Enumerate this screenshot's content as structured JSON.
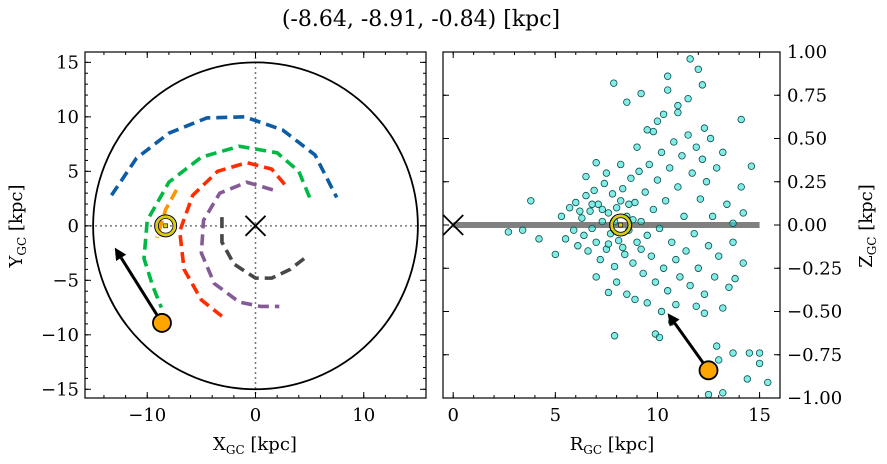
{
  "title": "(-8.64, -8.91, -0.84) [kpc]",
  "colors": {
    "blue": "#0C5DA5",
    "green": "#00B945",
    "red": "#FF2C00",
    "orange": "#FF9500",
    "purple": "#845B97",
    "gray": "#474747",
    "scatter_fill": "#2fe0d6",
    "scatter_edge": "#0b4f4c",
    "marker": "#FFA500",
    "sun": "#d8cc00",
    "plane": "#808080"
  },
  "chart_data": [
    {
      "type": "line",
      "panel": "left",
      "xlabel": {
        "main": "X",
        "sub": "GC",
        "unit": " [kpc]"
      },
      "ylabel": {
        "main": "Y",
        "sub": "GC",
        "unit": " [kpc]"
      },
      "xlim": [
        -15.75,
        15.75
      ],
      "ylim": [
        -15.8,
        15.95
      ],
      "xticks": [
        {
          "v": -10,
          "label": "−10"
        },
        {
          "v": 0,
          "label": "0"
        },
        {
          "v": 10,
          "label": "10"
        }
      ],
      "yticks": [
        {
          "v": -15,
          "label": "−15"
        },
        {
          "v": -10,
          "label": "−10"
        },
        {
          "v": -5,
          "label": "−5"
        },
        {
          "v": 0,
          "label": "0"
        },
        {
          "v": 5,
          "label": "5"
        },
        {
          "v": 10,
          "label": "10"
        },
        {
          "v": 15,
          "label": "15"
        }
      ],
      "boundary_circle_radius": 15,
      "galactic_center": [
        0,
        0
      ],
      "sun": [
        -8.3,
        0
      ],
      "object": [
        -8.64,
        -8.91
      ],
      "arrow": {
        "from": [
          -8.64,
          -8.91
        ],
        "to": [
          -13.0,
          -2.0
        ]
      },
      "series": [
        {
          "color": "blue",
          "points": [
            [
              -13.3,
              2.8
            ],
            [
              -11,
              6.2
            ],
            [
              -8,
              8.5
            ],
            [
              -4.5,
              9.9
            ],
            [
              -1,
              10
            ],
            [
              2.5,
              8.8
            ],
            [
              5.5,
              6.5
            ],
            [
              7.5,
              2.6
            ]
          ]
        },
        {
          "color": "green",
          "points": [
            [
              5,
              2.6
            ],
            [
              4,
              5
            ],
            [
              2,
              6.7
            ],
            [
              -1.5,
              7.3
            ],
            [
              -5,
              6.3
            ],
            [
              -8,
              4
            ],
            [
              -10,
              0.5
            ],
            [
              -10.3,
              -3
            ],
            [
              -9.5,
              -5.5
            ],
            [
              -8.7,
              -7.5
            ]
          ]
        },
        {
          "color": "red",
          "points": [
            [
              2.7,
              3.8
            ],
            [
              1.5,
              5.2
            ],
            [
              -0.8,
              5.8
            ],
            [
              -3.5,
              5
            ],
            [
              -5.8,
              2.8
            ],
            [
              -7,
              -0.5
            ],
            [
              -6.6,
              -4
            ],
            [
              -5,
              -6.8
            ],
            [
              -3.1,
              -8.3
            ]
          ]
        },
        {
          "color": "purple",
          "points": [
            [
              1.6,
              3.3
            ],
            [
              -0.8,
              4
            ],
            [
              -3.3,
              3
            ],
            [
              -4.8,
              0.5
            ],
            [
              -5,
              -2.5
            ],
            [
              -3.8,
              -5.3
            ],
            [
              -1.5,
              -7
            ],
            [
              0.5,
              -7.4
            ],
            [
              2.2,
              -7.4
            ]
          ]
        },
        {
          "color": "gray",
          "points": [
            [
              -3.1,
              0.8
            ],
            [
              -3.1,
              -1.5
            ],
            [
              -2,
              -3.5
            ],
            [
              0,
              -4.8
            ],
            [
              1.5,
              -4.8
            ],
            [
              3.2,
              -4
            ],
            [
              4.5,
              -3
            ]
          ]
        },
        {
          "color": "orange",
          "points": [
            [
              -7.3,
              3.3
            ],
            [
              -8.3,
              1.5
            ],
            [
              -9.1,
              -1.1
            ]
          ]
        }
      ]
    },
    {
      "type": "scatter",
      "panel": "right",
      "xlabel": {
        "main": "R",
        "sub": "GC",
        "unit": " [kpc]"
      },
      "ylabel": {
        "main": "Z",
        "sub": "GC",
        "unit": " [kpc]"
      },
      "xlim": [
        -0.5,
        16
      ],
      "ylim": [
        -1,
        1
      ],
      "xticks": [
        {
          "v": 0,
          "label": "0"
        },
        {
          "v": 5,
          "label": "5"
        },
        {
          "v": 10,
          "label": "10"
        },
        {
          "v": 15,
          "label": "15"
        }
      ],
      "yticks": [
        {
          "v": 1,
          "label": "1.00"
        },
        {
          "v": 0.75,
          "label": "0.75"
        },
        {
          "v": 0.5,
          "label": "0.50"
        },
        {
          "v": 0.25,
          "label": "0.25"
        },
        {
          "v": 0,
          "label": "0.00"
        },
        {
          "v": -0.25,
          "label": "−0.25"
        },
        {
          "v": -0.5,
          "label": "−0.50"
        },
        {
          "v": -0.75,
          "label": "−0.75"
        },
        {
          "v": -1,
          "label": "−1.00"
        }
      ],
      "galactic_center": [
        0,
        0
      ],
      "plane": {
        "z": 0,
        "r_range": [
          0,
          15
        ]
      },
      "sun": [
        8.2,
        0
      ],
      "object": [
        12.5,
        -0.84
      ],
      "arrow": {
        "from": [
          12.5,
          -0.84
        ],
        "to": [
          10.5,
          -0.51
        ]
      },
      "points": [
        [
          11.6,
          0.96
        ],
        [
          12.0,
          0.9
        ],
        [
          7.86,
          0.82
        ],
        [
          10.5,
          0.86
        ],
        [
          10.5,
          0.78
        ],
        [
          12.2,
          0.81
        ],
        [
          9.2,
          0.76
        ],
        [
          8.5,
          0.71
        ],
        [
          11.5,
          0.73
        ],
        [
          11.0,
          0.69
        ],
        [
          10.3,
          0.64
        ],
        [
          14.1,
          0.61
        ],
        [
          12.3,
          0.56
        ],
        [
          9.8,
          0.54
        ],
        [
          14.6,
          0.34
        ],
        [
          14.1,
          0.22
        ],
        [
          7.0,
          0.36
        ],
        [
          3.8,
          0.14
        ],
        [
          2.7,
          -0.04
        ],
        [
          3.4,
          -0.03
        ],
        [
          4.2,
          -0.08
        ],
        [
          5.0,
          -0.17
        ],
        [
          7.9,
          -0.64
        ],
        [
          9.9,
          -0.63
        ],
        [
          10.1,
          -0.65
        ],
        [
          12.9,
          -0.7
        ],
        [
          13.7,
          -0.74
        ],
        [
          14.5,
          -0.74
        ],
        [
          15.0,
          -0.74
        ],
        [
          15.0,
          -0.8
        ],
        [
          14.4,
          -0.89
        ],
        [
          15.4,
          -0.91
        ],
        [
          13.0,
          -0.78
        ],
        [
          12.5,
          -0.98
        ],
        [
          13.2,
          -0.97
        ],
        [
          14.2,
          0.07
        ],
        [
          13.7,
          0.01
        ],
        [
          13.7,
          -0.1
        ],
        [
          14.2,
          -0.22
        ],
        [
          13.8,
          -0.31
        ],
        [
          13.2,
          -0.48
        ],
        [
          12.3,
          -0.51
        ],
        [
          11.9,
          -0.47
        ],
        [
          10.9,
          -0.46
        ],
        [
          8.9,
          -0.43
        ],
        [
          7.6,
          -0.39
        ],
        [
          10.7,
          -0.56
        ],
        [
          5.3,
          0.05
        ],
        [
          5.5,
          -0.08
        ],
        [
          5.7,
          0.1
        ],
        [
          5.9,
          -0.03
        ],
        [
          6.0,
          0.13
        ],
        [
          6.1,
          -0.12
        ],
        [
          6.3,
          0.04
        ],
        [
          6.4,
          -0.06
        ],
        [
          6.5,
          0.17
        ],
        [
          6.6,
          -0.15
        ],
        [
          6.7,
          0.08
        ],
        [
          6.8,
          -0.02
        ],
        [
          6.9,
          0.2
        ],
        [
          7.0,
          -0.1
        ],
        [
          7.1,
          0.12
        ],
        [
          7.2,
          -0.2
        ],
        [
          7.3,
          0.02
        ],
        [
          7.4,
          0.24
        ],
        [
          7.5,
          -0.14
        ],
        [
          7.6,
          0.07
        ],
        [
          7.7,
          -0.05
        ],
        [
          7.8,
          0.18
        ],
        [
          7.9,
          -0.24
        ],
        [
          8.0,
          0.1
        ],
        [
          8.1,
          -0.09
        ],
        [
          8.3,
          0.21
        ],
        [
          8.4,
          -0.17
        ],
        [
          8.5,
          0.05
        ],
        [
          8.6,
          -0.03
        ],
        [
          8.7,
          0.27
        ],
        [
          8.8,
          -0.22
        ],
        [
          8.9,
          0.13
        ],
        [
          9.0,
          -0.1
        ],
        [
          9.1,
          0.31
        ],
        [
          9.2,
          0.02
        ],
        [
          9.3,
          -0.28
        ],
        [
          9.4,
          0.19
        ],
        [
          9.5,
          -0.06
        ],
        [
          9.6,
          0.35
        ],
        [
          9.7,
          -0.18
        ],
        [
          9.8,
          0.09
        ],
        [
          9.9,
          -0.33
        ],
        [
          10.0,
          0.26
        ],
        [
          10.1,
          -0.02
        ],
        [
          10.2,
          0.42
        ],
        [
          10.3,
          -0.25
        ],
        [
          10.4,
          0.14
        ],
        [
          10.5,
          -0.38
        ],
        [
          10.6,
          0.33
        ],
        [
          10.7,
          -0.1
        ],
        [
          10.8,
          0.48
        ],
        [
          10.9,
          -0.2
        ],
        [
          11.0,
          0.22
        ],
        [
          11.1,
          -0.3
        ],
        [
          11.2,
          0.4
        ],
        [
          11.3,
          0.05
        ],
        [
          11.4,
          -0.15
        ],
        [
          11.5,
          0.52
        ],
        [
          11.6,
          -0.35
        ],
        [
          11.7,
          0.3
        ],
        [
          11.8,
          -0.05
        ],
        [
          11.9,
          0.45
        ],
        [
          12.0,
          -0.25
        ],
        [
          12.1,
          0.15
        ],
        [
          12.2,
          0.38
        ],
        [
          12.3,
          -0.4
        ],
        [
          12.4,
          0.25
        ],
        [
          12.5,
          -0.12
        ],
        [
          12.6,
          0.5
        ],
        [
          12.7,
          0.05
        ],
        [
          12.8,
          -0.3
        ],
        [
          12.9,
          0.33
        ],
        [
          13.0,
          -0.18
        ],
        [
          13.2,
          0.42
        ],
        [
          13.4,
          0.12
        ],
        [
          13.5,
          -0.36
        ],
        [
          7.5,
          0.3
        ],
        [
          8.2,
          0.35
        ],
        [
          9.0,
          0.45
        ],
        [
          9.5,
          0.55
        ],
        [
          10.0,
          0.6
        ],
        [
          11.0,
          0.65
        ],
        [
          6.5,
          0.28
        ],
        [
          7.0,
          -0.3
        ],
        [
          8.0,
          -0.33
        ],
        [
          8.5,
          -0.4
        ],
        [
          9.5,
          -0.45
        ],
        [
          10.2,
          -0.5
        ],
        [
          7.3,
          0.09
        ],
        [
          7.6,
          -0.11
        ],
        [
          8.2,
          0.14
        ],
        [
          8.6,
          0.12
        ],
        [
          8.8,
          0.03
        ],
        [
          7.9,
          0.02
        ],
        [
          8.3,
          -0.13
        ],
        [
          9.2,
          -0.14
        ],
        [
          6.2,
          0.08
        ],
        [
          6.8,
          0.12
        ]
      ]
    }
  ]
}
